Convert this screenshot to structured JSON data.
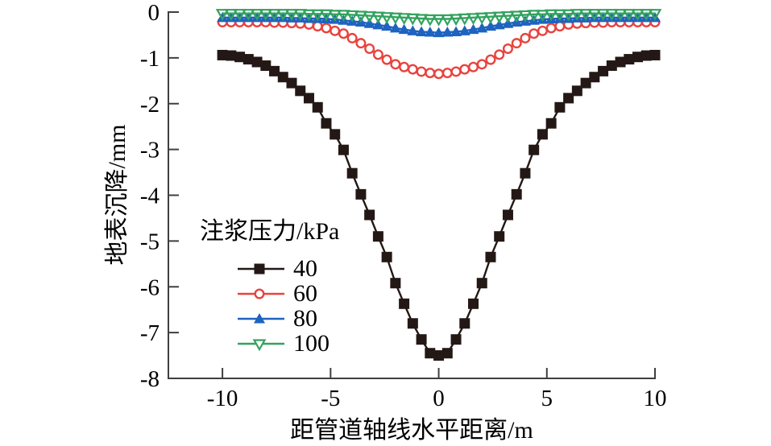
{
  "figure": {
    "background": "#ffffff",
    "axis_color": "#3f3f3f",
    "text_color": "#000000"
  },
  "chart_data": {
    "type": "line",
    "title": "",
    "xlabel": "距管道轴线水平距离/m",
    "ylabel": "地表沉降/mm",
    "xlim": [
      -12.5,
      10
    ],
    "ylim": [
      -8,
      0
    ],
    "x_ticks": [
      -10,
      -5,
      0,
      5,
      10
    ],
    "y_ticks": [
      0,
      -1,
      -2,
      -3,
      -4,
      -5,
      -6,
      -7,
      -8
    ],
    "grid": false,
    "legend": {
      "title": "注浆压力/kPa",
      "position": "inside-left-center"
    },
    "x": [
      -10,
      -9.6,
      -9.2,
      -8.8,
      -8.4,
      -8,
      -7.6,
      -7.2,
      -6.8,
      -6.4,
      -6,
      -5.6,
      -5.2,
      -4.8,
      -4.4,
      -4,
      -3.6,
      -3.2,
      -2.8,
      -2.4,
      -2,
      -1.6,
      -1.2,
      -0.8,
      -0.4,
      0,
      0.4,
      0.8,
      1.2,
      1.6,
      2,
      2.4,
      2.8,
      3.2,
      3.6,
      4,
      4.4,
      4.8,
      5.2,
      5.6,
      6,
      6.4,
      6.8,
      7.2,
      7.6,
      8,
      8.4,
      8.8,
      9.2,
      9.6,
      10
    ],
    "series": [
      {
        "label": "40",
        "color": "#231815",
        "marker": "square-filled",
        "values": [
          -0.94,
          -0.95,
          -0.98,
          -1.03,
          -1.09,
          -1.17,
          -1.29,
          -1.42,
          -1.55,
          -1.72,
          -1.88,
          -2.08,
          -2.43,
          -2.67,
          -3.01,
          -3.52,
          -3.98,
          -4.43,
          -4.9,
          -5.35,
          -5.92,
          -6.37,
          -6.8,
          -7.15,
          -7.45,
          -7.5,
          -7.45,
          -7.15,
          -6.8,
          -6.37,
          -5.92,
          -5.35,
          -4.9,
          -4.43,
          -3.98,
          -3.52,
          -3.01,
          -2.67,
          -2.43,
          -2.08,
          -1.88,
          -1.72,
          -1.55,
          -1.42,
          -1.29,
          -1.17,
          -1.09,
          -1.03,
          -0.98,
          -0.95,
          -0.94
        ]
      },
      {
        "label": "60",
        "color": "#e8433e",
        "marker": "circle-open",
        "values": [
          -0.22,
          -0.22,
          -0.22,
          -0.22,
          -0.22,
          -0.22,
          -0.23,
          -0.23,
          -0.24,
          -0.25,
          -0.27,
          -0.31,
          -0.35,
          -0.41,
          -0.47,
          -0.57,
          -0.68,
          -0.8,
          -0.93,
          -1.04,
          -1.14,
          -1.2,
          -1.25,
          -1.3,
          -1.33,
          -1.35,
          -1.33,
          -1.3,
          -1.25,
          -1.2,
          -1.14,
          -1.04,
          -0.93,
          -0.8,
          -0.68,
          -0.57,
          -0.47,
          -0.41,
          -0.35,
          -0.31,
          -0.27,
          -0.25,
          -0.24,
          -0.23,
          -0.23,
          -0.22,
          -0.22,
          -0.22,
          -0.22,
          -0.22,
          -0.22
        ]
      },
      {
        "label": "80",
        "color": "#1e63c0",
        "marker": "triangle-up-filled",
        "values": [
          -0.12,
          -0.12,
          -0.12,
          -0.12,
          -0.12,
          -0.12,
          -0.12,
          -0.12,
          -0.13,
          -0.13,
          -0.14,
          -0.14,
          -0.15,
          -0.16,
          -0.18,
          -0.2,
          -0.22,
          -0.25,
          -0.28,
          -0.31,
          -0.35,
          -0.38,
          -0.41,
          -0.43,
          -0.44,
          -0.45,
          -0.44,
          -0.43,
          -0.41,
          -0.38,
          -0.35,
          -0.31,
          -0.28,
          -0.25,
          -0.22,
          -0.2,
          -0.18,
          -0.16,
          -0.15,
          -0.14,
          -0.14,
          -0.13,
          -0.13,
          -0.12,
          -0.12,
          -0.12,
          -0.12,
          -0.12,
          -0.12,
          -0.12,
          -0.12
        ]
      },
      {
        "label": "100",
        "color": "#33a35f",
        "marker": "triangle-down-open",
        "values": [
          -0.03,
          -0.03,
          -0.03,
          -0.03,
          -0.03,
          -0.03,
          -0.03,
          -0.03,
          -0.03,
          -0.03,
          -0.04,
          -0.04,
          -0.04,
          -0.05,
          -0.05,
          -0.06,
          -0.07,
          -0.08,
          -0.09,
          -0.1,
          -0.11,
          -0.12,
          -0.13,
          -0.14,
          -0.15,
          -0.15,
          -0.15,
          -0.14,
          -0.13,
          -0.12,
          -0.11,
          -0.1,
          -0.09,
          -0.08,
          -0.07,
          -0.06,
          -0.05,
          -0.05,
          -0.04,
          -0.04,
          -0.04,
          -0.03,
          -0.03,
          -0.03,
          -0.03,
          -0.03,
          -0.03,
          -0.03,
          -0.03,
          -0.03,
          -0.03
        ]
      }
    ]
  }
}
